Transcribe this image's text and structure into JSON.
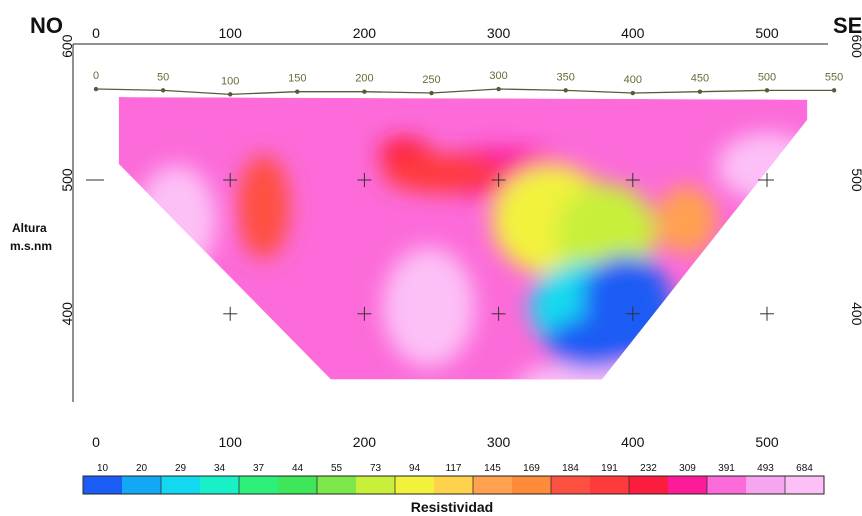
{
  "chart_data": {
    "type": "heatmap",
    "labels": {
      "left_end": "NO",
      "right_end": "SE"
    },
    "ylabel": [
      "Altura",
      "m.s.nm"
    ],
    "colorbar_label": "Resistividad",
    "x_ticks": [
      "0",
      "100",
      "200",
      "300",
      "400",
      "500"
    ],
    "y_ticks": [
      "600",
      "500",
      "400"
    ],
    "xlim": [
      0,
      550
    ],
    "ylim": [
      320,
      605
    ],
    "electrode_ticks": [
      "0",
      "50",
      "100",
      "150",
      "200",
      "250",
      "300",
      "350",
      "400",
      "450",
      "500",
      "550"
    ],
    "topography": [
      {
        "x": 0,
        "y": 568
      },
      {
        "x": 50,
        "y": 567
      },
      {
        "x": 100,
        "y": 564
      },
      {
        "x": 150,
        "y": 566
      },
      {
        "x": 200,
        "y": 566
      },
      {
        "x": 250,
        "y": 565
      },
      {
        "x": 300,
        "y": 568
      },
      {
        "x": 350,
        "y": 567
      },
      {
        "x": 400,
        "y": 565
      },
      {
        "x": 450,
        "y": 566
      },
      {
        "x": 500,
        "y": 567
      },
      {
        "x": 550,
        "y": 567
      }
    ],
    "section_outline": [
      {
        "x": 17,
        "y": 562
      },
      {
        "x": 530,
        "y": 560
      },
      {
        "x": 530,
        "y": 545
      },
      {
        "x": 377,
        "y": 351
      },
      {
        "x": 175,
        "y": 351
      },
      {
        "x": 17,
        "y": 512
      }
    ],
    "anomalies": [
      {
        "x": 248,
        "y": 405,
        "resistivity": 684
      },
      {
        "x": 365,
        "y": 345,
        "resistivity": 684
      },
      {
        "x": 500,
        "y": 510,
        "resistivity": 684
      },
      {
        "x": 60,
        "y": 470,
        "resistivity": 684
      },
      {
        "x": 125,
        "y": 480,
        "resistivity": 184
      },
      {
        "x": 300,
        "y": 505,
        "resistivity": 309
      },
      {
        "x": 230,
        "y": 520,
        "resistivity": 232
      },
      {
        "x": 258,
        "y": 505,
        "resistivity": 191
      },
      {
        "x": 340,
        "y": 470,
        "resistivity": 94
      },
      {
        "x": 380,
        "y": 460,
        "resistivity": 73
      },
      {
        "x": 365,
        "y": 405,
        "resistivity": 29
      },
      {
        "x": 395,
        "y": 412,
        "resistivity": 10
      },
      {
        "x": 410,
        "y": 390,
        "resistivity": 10
      },
      {
        "x": 370,
        "y": 378,
        "resistivity": 10
      },
      {
        "x": 440,
        "y": 470,
        "resistivity": 145
      }
    ],
    "colorbar": {
      "values": [
        "10",
        "20",
        "29",
        "34",
        "37",
        "44",
        "55",
        "73",
        "94",
        "117",
        "145",
        "169",
        "184",
        "191",
        "232",
        "309",
        "391",
        "493",
        "684"
      ],
      "colors": [
        "#1a5cf5",
        "#12a8f5",
        "#12d9ef",
        "#18f0c8",
        "#2cf07a",
        "#3ee65a",
        "#7ce84a",
        "#c8f03a",
        "#f2f23c",
        "#fed24a",
        "#ffa14f",
        "#ff8a3a",
        "#fe5040",
        "#fe3a3c",
        "#fc1c3e",
        "#fc1c9a",
        "#fc6bd9",
        "#f7a5ef",
        "#fcc0f6"
      ]
    }
  }
}
